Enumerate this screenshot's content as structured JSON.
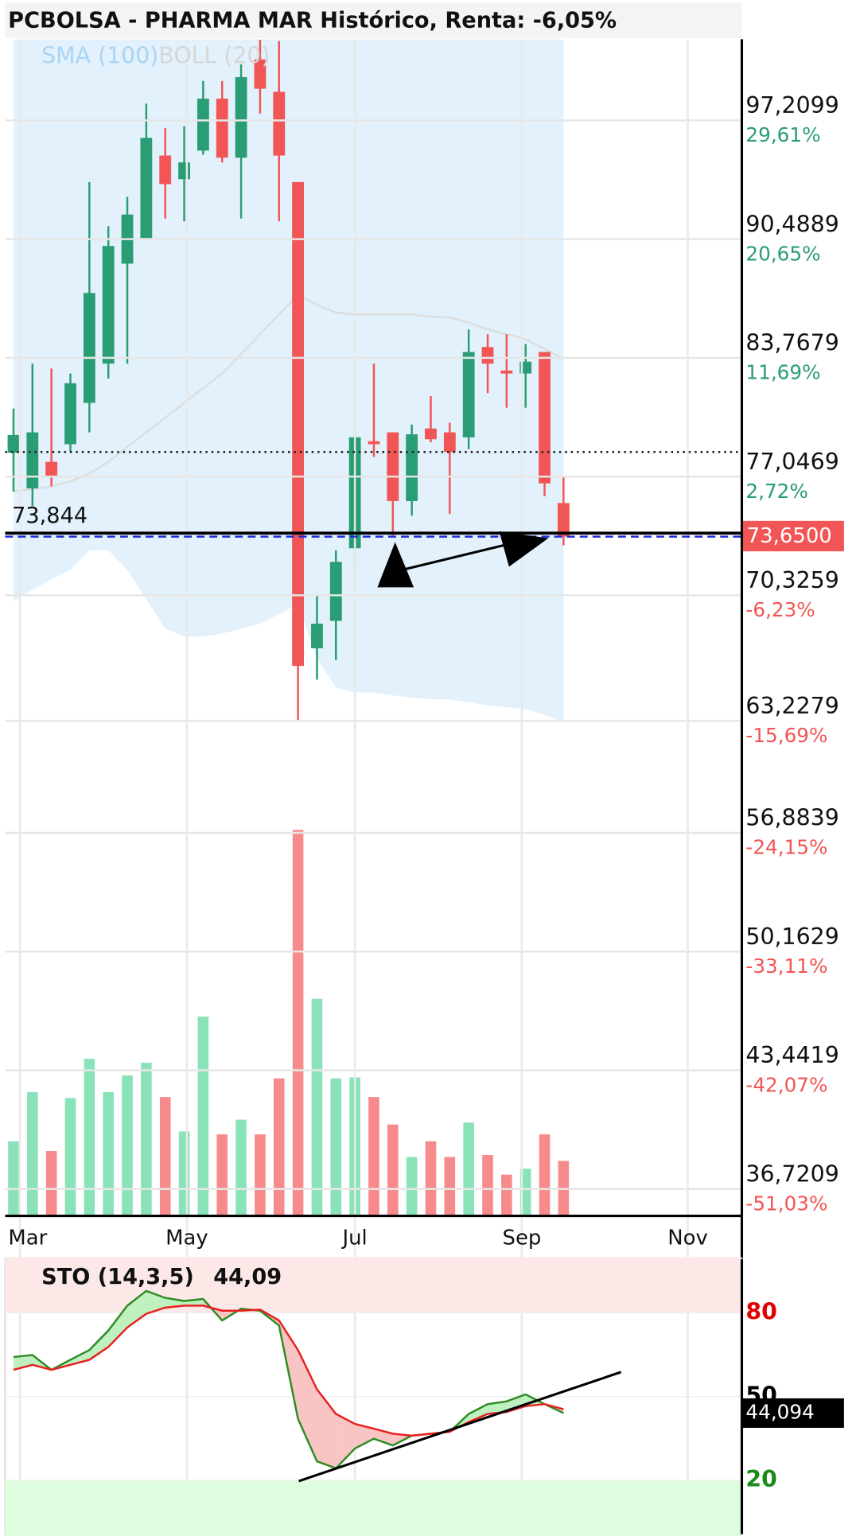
{
  "chart_data": [
    {
      "type": "candlestick",
      "title": "PCBOLSA - PHARMA MAR Histórico, Renta: -6,05%",
      "legend": [
        {
          "name": "SMA (100)",
          "color": "#a9d4f5"
        },
        {
          "name": "BOLL (20)",
          "color": "#d6d6d6"
        }
      ],
      "categories": [
        null,
        null,
        null,
        null,
        null,
        null,
        null,
        null,
        null,
        null,
        null,
        null,
        null,
        null,
        null,
        null,
        null,
        null,
        null,
        null,
        null,
        null,
        null,
        null,
        null,
        null,
        null,
        null,
        null,
        null
      ],
      "open": [
        78.4,
        76.38,
        77.88,
        78.88,
        81.22,
        83.44,
        89.1,
        90.55,
        95.22,
        93.88,
        95.5,
        98.44,
        95.1,
        100.66,
        98.83,
        93.72,
        67.33,
        68.88,
        72.99,
        79.05,
        79.55,
        75.66,
        79.77,
        79.55,
        79.27,
        84.38,
        83.05,
        82.88,
        84.1,
        75.55
      ],
      "high": [
        80.9,
        83.44,
        83.16,
        82.88,
        93.72,
        91.22,
        92.88,
        98.16,
        96.77,
        96.88,
        99.44,
        99.44,
        100.38,
        101.77,
        101.7,
        93.72,
        70.38,
        72.88,
        79.66,
        83.44,
        79.55,
        79.99,
        81.6,
        80.1,
        85.38,
        85.1,
        85.1,
        84.55,
        84.1,
        77.05
      ],
      "low": [
        76.2,
        75.38,
        76.49,
        78.44,
        79.55,
        82.6,
        83.44,
        90.55,
        91.66,
        91.5,
        95.27,
        94.83,
        91.66,
        97.6,
        91.5,
        63.27,
        65.55,
        66.66,
        71.77,
        78.16,
        73.72,
        74.83,
        78.99,
        74.94,
        78.6,
        81.77,
        80.94,
        80.94,
        75.94,
        73.16
      ],
      "close": [
        79.4,
        79.55,
        77.05,
        82.33,
        87.44,
        90.1,
        91.88,
        96.22,
        93.6,
        94.83,
        98.44,
        95.1,
        99.66,
        99.0,
        95.22,
        66.33,
        68.72,
        72.22,
        79.27,
        78.88,
        75.66,
        79.44,
        79.16,
        78.44,
        84.1,
        83.44,
        82.88,
        83.55,
        76.66,
        73.65
      ],
      "up_color": "#2a9d74",
      "down_color": "#f25555",
      "volume": [
        76,
        126,
        66,
        120,
        160,
        126,
        143,
        156,
        121,
        86,
        203,
        83,
        98,
        83,
        140,
        393,
        221,
        140,
        141,
        121,
        93,
        60,
        76,
        60,
        95,
        62,
        42,
        48,
        83,
        56
      ],
      "volume_up_color": "#8ae3b8",
      "volume_down_color": "#f78a8a",
      "boll_mid": [
        76.22,
        76.33,
        76.49,
        76.77,
        77.22,
        77.88,
        78.72,
        79.55,
        80.38,
        81.22,
        82.05,
        82.88,
        83.99,
        85.1,
        86.22,
        87.33,
        86.77,
        86.33,
        86.22,
        86.22,
        86.22,
        86.22,
        86.11,
        86.05,
        85.77,
        85.38,
        85.1,
        84.83,
        84.27,
        83.72
      ],
      "boll_lower": [
        69.99,
        70.66,
        71.22,
        71.77,
        72.88,
        72.88,
        71.77,
        70.1,
        68.44,
        67.99,
        67.99,
        68.16,
        68.44,
        68.72,
        69.27,
        69.83,
        66.77,
        65.1,
        64.83,
        64.83,
        64.66,
        64.55,
        64.44,
        64.44,
        64.27,
        64.1,
        63.99,
        63.88,
        63.55,
        63.16
      ],
      "band_color": "#e2f1fc",
      "mid_color": "#dddddd",
      "ylim": [
        35.2,
        101.8
      ],
      "yticks": [
        {
          "value": 97.2099,
          "label": "97,2099"
        },
        {
          "value": 90.4889,
          "label": "90,4889"
        },
        {
          "value": 83.7679,
          "label": "83,7679"
        },
        {
          "value": 77.0469,
          "label": "77,0469"
        },
        {
          "value": 70.3259,
          "label": "70,3259"
        },
        {
          "value": 63.2279,
          "label": "63,2279"
        },
        {
          "value": 56.8839,
          "label": "56,8839"
        },
        {
          "value": 50.1629,
          "label": "50,1629"
        },
        {
          "value": 43.4419,
          "label": "43,4419"
        },
        {
          "value": 36.7209,
          "label": "36,7209"
        }
      ],
      "ytick_percents": [
        "29,61%",
        "20,65%",
        "11,69%",
        "2,72%",
        "-6,23%",
        "-15,69%",
        "-24,15%",
        "-33,11%",
        "-42,07%",
        "-51,03%"
      ],
      "xlim": [
        -0.7,
        38.4
      ],
      "xticks": [
        {
          "value": 0.34,
          "label": "Mar"
        },
        {
          "value": 9.14,
          "label": "May"
        },
        {
          "value": 18.0,
          "label": "Jul"
        },
        {
          "value": 26.8,
          "label": "Sep"
        },
        {
          "value": 35.55,
          "label": "Nov"
        }
      ],
      "grid": true,
      "last_price": {
        "value": 73.65,
        "label": "73,6500"
      },
      "level_line": {
        "value": 73.844,
        "label": "73,844"
      },
      "dotted_level": 78.44
    },
    {
      "type": "stochastic",
      "title": "STO (14,3,5)",
      "header_value": {
        "value": 44.09,
        "label": "44,09"
      },
      "last_value": {
        "value": 44.094,
        "label": "44,094"
      },
      "series": [
        {
          "color": "#2e8b22",
          "values": [
            64.2,
            64.9,
            59.6,
            63.2,
            66.7,
            73.7,
            82.6,
            87.9,
            85.4,
            84.3,
            85.0,
            77.3,
            81.5,
            80.8,
            75.5,
            42.0,
            26.8,
            24.3,
            31.4,
            34.9,
            32.5,
            36.0,
            36.7,
            37.4,
            43.8,
            47.3,
            48.3,
            50.8,
            47.3,
            44.094
          ]
        },
        {
          "color": "#e8201f",
          "values": [
            59.6,
            61.4,
            59.6,
            61.4,
            63.2,
            67.8,
            74.8,
            79.7,
            81.9,
            82.6,
            82.6,
            80.8,
            80.8,
            81.2,
            77.3,
            66.7,
            52.6,
            43.8,
            40.2,
            38.5,
            36.7,
            36.0,
            36.7,
            37.4,
            40.9,
            43.8,
            44.5,
            46.6,
            47.3,
            45.5
          ]
        }
      ],
      "up_fill": "#bff0bf",
      "down_fill": "#f8c4c4",
      "ylim": [
        0,
        100
      ],
      "yticks": [
        80,
        50,
        20
      ],
      "ytick_colors": [
        "#e00000",
        "#000000",
        "#1a8a1a"
      ],
      "zones": [
        {
          "from": 80,
          "to": 100,
          "color": "#fde8e8"
        },
        {
          "from": 0,
          "to": 20,
          "color": "#defcde"
        }
      ]
    }
  ]
}
